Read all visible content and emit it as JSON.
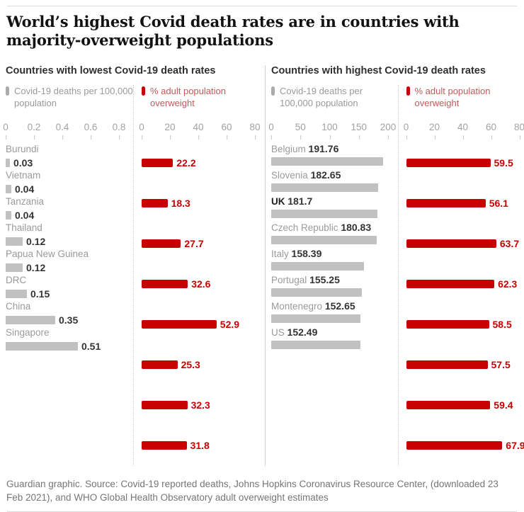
{
  "page": {
    "title": "World’s highest Covid death rates are in countries with majority-overweight populations"
  },
  "colors": {
    "accent_red": "#c70000",
    "bar_gray": "#c1c1c1",
    "muted_text": "#9a9a9a",
    "divider": "#d4d4d4"
  },
  "legend": {
    "deaths_label": "Covid-19 deaths per 100,000 population",
    "overweight_label": "% adult population overweight"
  },
  "panels": [
    {
      "title": "Countries with lowest Covid-19 death rates",
      "deaths_axis": {
        "ticks": [
          "0",
          "0.2",
          "0.4",
          "0.6",
          "0.8"
        ],
        "max": 0.8
      },
      "overweight_axis": {
        "ticks": [
          "0",
          "20",
          "40",
          "60",
          "80"
        ],
        "max": 80
      },
      "rows": [
        {
          "country": "Burundi",
          "deaths": 0.03,
          "deaths_label": "0.03",
          "overweight": 22.2,
          "overweight_label": "22.2"
        },
        {
          "country": "Vietnam",
          "deaths": 0.04,
          "deaths_label": "0.04",
          "overweight": 18.3,
          "overweight_label": "18.3"
        },
        {
          "country": "Tanzania",
          "deaths": 0.04,
          "deaths_label": "0.04",
          "overweight": 27.7,
          "overweight_label": "27.7"
        },
        {
          "country": "Thailand",
          "deaths": 0.12,
          "deaths_label": "0.12",
          "overweight": 32.6,
          "overweight_label": "32.6"
        },
        {
          "country": "Papua New Guinea",
          "deaths": 0.12,
          "deaths_label": "0.12",
          "overweight": 52.9,
          "overweight_label": "52.9"
        },
        {
          "country": "DRC",
          "deaths": 0.15,
          "deaths_label": "0.15",
          "overweight": 25.3,
          "overweight_label": "25.3"
        },
        {
          "country": "China",
          "deaths": 0.35,
          "deaths_label": "0.35",
          "overweight": 32.3,
          "overweight_label": "32.3"
        },
        {
          "country": "Singapore",
          "deaths": 0.51,
          "deaths_label": "0.51",
          "overweight": 31.8,
          "overweight_label": "31.8"
        }
      ]
    },
    {
      "title": "Countries with highest Covid-19 death rates",
      "deaths_axis": {
        "ticks": [
          "0",
          "50",
          "100",
          "150",
          "200"
        ],
        "max": 200
      },
      "overweight_axis": {
        "ticks": [
          "0",
          "20",
          "40",
          "60",
          "80"
        ],
        "max": 80
      },
      "rows": [
        {
          "country": "Belgium",
          "deaths": 191.76,
          "deaths_label": "191.76",
          "overweight": 59.5,
          "overweight_label": "59.5",
          "highlight": false
        },
        {
          "country": "Slovenia",
          "deaths": 182.65,
          "deaths_label": "182.65",
          "overweight": 56.1,
          "overweight_label": "56.1",
          "highlight": false
        },
        {
          "country": "UK",
          "deaths": 181.7,
          "deaths_label": "181.7",
          "overweight": 63.7,
          "overweight_label": "63.7",
          "highlight": true
        },
        {
          "country": "Czech Republic",
          "deaths": 180.83,
          "deaths_label": "180.83",
          "overweight": 62.3,
          "overweight_label": "62.3",
          "highlight": false
        },
        {
          "country": "Italy",
          "deaths": 158.39,
          "deaths_label": "158.39",
          "overweight": 58.5,
          "overweight_label": "58.5",
          "highlight": false
        },
        {
          "country": "Portugal",
          "deaths": 155.25,
          "deaths_label": "155.25",
          "overweight": 57.5,
          "overweight_label": "57.5",
          "highlight": false
        },
        {
          "country": "Montenegro",
          "deaths": 152.65,
          "deaths_label": "152.65",
          "overweight": 59.4,
          "overweight_label": "59.4",
          "highlight": false
        },
        {
          "country": "US",
          "deaths": 152.49,
          "deaths_label": "152.49",
          "overweight": 67.9,
          "overweight_label": "67.9",
          "highlight": false
        }
      ]
    }
  ],
  "footer": {
    "text": "Guardian graphic. Source: Covid-19 reported deaths, Johns Hopkins Coronavirus Resource Center, (downloaded 23 Feb 2021), and WHO Global Health Observatory adult overweight estimates"
  },
  "chart_data": [
    {
      "type": "bar",
      "orientation": "horizontal",
      "title": "Countries with lowest Covid-19 death rates",
      "categories": [
        "Burundi",
        "Vietnam",
        "Tanzania",
        "Thailand",
        "Papua New Guinea",
        "DRC",
        "China",
        "Singapore"
      ],
      "series": [
        {
          "name": "Covid-19 deaths per 100,000 population",
          "values": [
            0.03,
            0.04,
            0.04,
            0.12,
            0.12,
            0.15,
            0.35,
            0.51
          ],
          "color": "#c1c1c1",
          "axis_ticks": [
            0,
            0.2,
            0.4,
            0.6,
            0.8
          ],
          "xlim": [
            0,
            0.8
          ]
        },
        {
          "name": "% adult population overweight",
          "values": [
            22.2,
            18.3,
            27.7,
            32.6,
            52.9,
            25.3,
            32.3,
            31.8
          ],
          "color": "#c70000",
          "axis_ticks": [
            0,
            20,
            40,
            60,
            80
          ],
          "xlim": [
            0,
            80
          ]
        }
      ],
      "grid": false,
      "legend_position": "top",
      "data_labels": true
    },
    {
      "type": "bar",
      "orientation": "horizontal",
      "title": "Countries with highest Covid-19 death rates",
      "categories": [
        "Belgium",
        "Slovenia",
        "UK",
        "Czech Republic",
        "Italy",
        "Portugal",
        "Montenegro",
        "US"
      ],
      "series": [
        {
          "name": "Covid-19 deaths per 100,000 population",
          "values": [
            191.76,
            182.65,
            181.7,
            180.83,
            158.39,
            155.25,
            152.65,
            152.49
          ],
          "color": "#c1c1c1",
          "axis_ticks": [
            0,
            50,
            100,
            150,
            200
          ],
          "xlim": [
            0,
            200
          ]
        },
        {
          "name": "% adult population overweight",
          "values": [
            59.5,
            56.1,
            63.7,
            62.3,
            58.5,
            57.5,
            59.4,
            67.9
          ],
          "color": "#c70000",
          "axis_ticks": [
            0,
            20,
            40,
            60,
            80
          ],
          "xlim": [
            0,
            80
          ]
        }
      ],
      "grid": false,
      "legend_position": "top",
      "data_labels": true,
      "highlighted_category": "UK"
    }
  ]
}
